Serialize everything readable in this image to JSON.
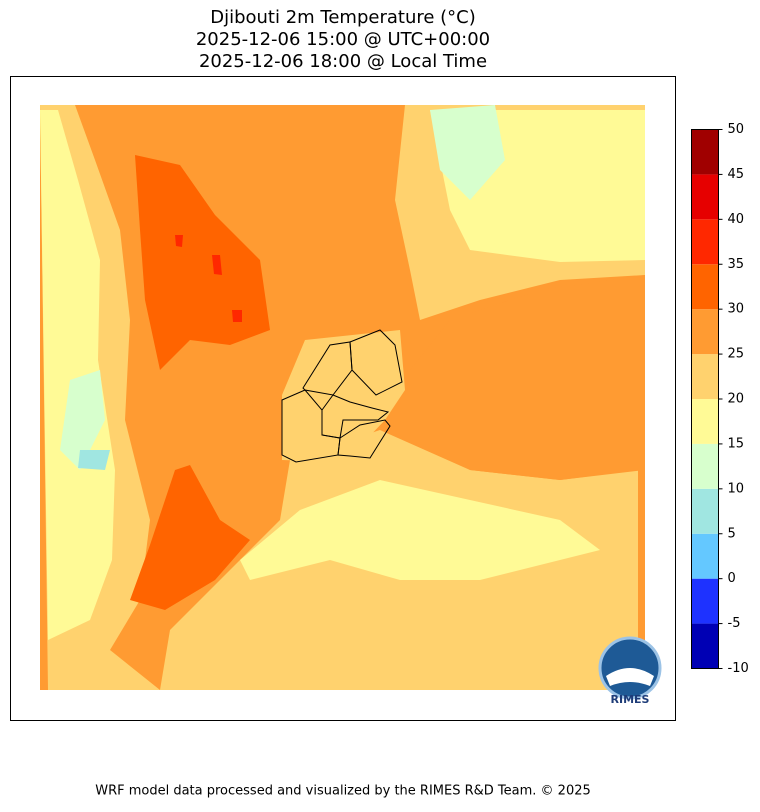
{
  "title": [
    "Djibouti 2m Temperature (°C)",
    "2025-12-06 15:00 @ UTC+00:00",
    "2025-12-06 18:00 @ Local Time"
  ],
  "colorbar": {
    "ticks": [
      -10,
      -5,
      0,
      5,
      10,
      15,
      20,
      25,
      30,
      35,
      40,
      45,
      50
    ],
    "colors": [
      "#0000b4",
      "#1e32ff",
      "#64c8ff",
      "#a0e6e1",
      "#d7ffcd",
      "#fffa96",
      "#ffd26e",
      "#ff9b32",
      "#ff6400",
      "#ff2800",
      "#e60000",
      "#a00000"
    ]
  },
  "logo": "RIMES",
  "footer": "WRF model data processed and visualized by the RIMES R&D Team. © 2025"
}
